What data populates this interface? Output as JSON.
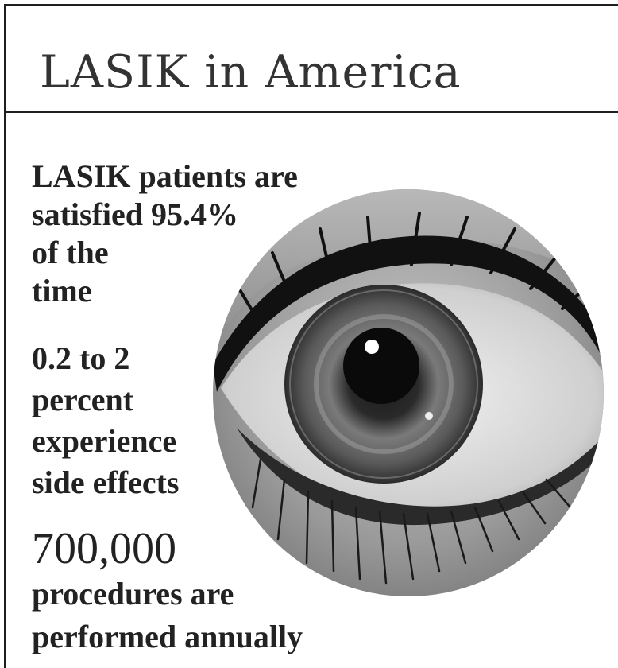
{
  "title": "LASIK in America",
  "stats": {
    "satisfaction_lines": [
      "LASIK patients are",
      "satisfied 95.4%",
      "of the",
      "time"
    ],
    "side_effects_lines": [
      "0.2 to 2",
      "percent",
      "experience",
      "side effects"
    ],
    "procedures_number": "700,000",
    "procedures_lines": [
      "procedures are",
      "performed annually"
    ]
  },
  "image": {
    "icon": "eye-closeup-photo"
  }
}
